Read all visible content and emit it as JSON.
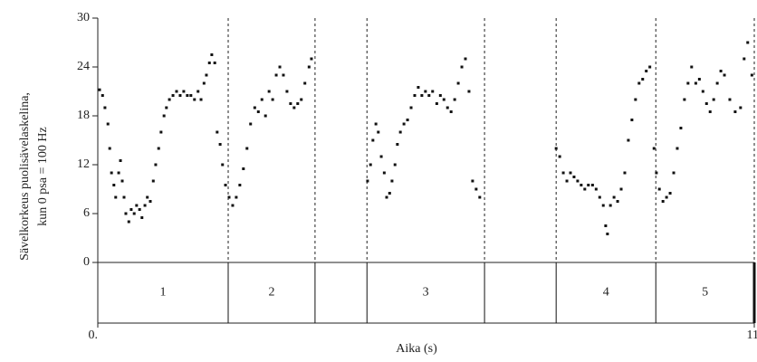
{
  "chart_data": {
    "type": "scatter",
    "x_label": "Aika (s)",
    "y_label": [
      "Sävelkorkeus puolisävelaskelina,",
      "kun 0 psa = 100 Hz"
    ],
    "xlim": [
      0,
      11
    ],
    "xticks": [
      {
        "value": 0,
        "label": "0."
      },
      {
        "value": 11,
        "label": "11."
      }
    ],
    "ylim": [
      0,
      30
    ],
    "yticks": [
      0,
      6,
      12,
      18,
      24,
      30
    ],
    "color": "#111111",
    "segments": [
      {
        "label": "1",
        "start": 0,
        "end": 2.185
      },
      {
        "label": "2",
        "start": 2.185,
        "end": 3.64
      },
      {
        "label": null,
        "start": 3.64,
        "end": 4.51
      },
      {
        "label": "3",
        "start": 4.51,
        "end": 6.48
      },
      {
        "label": null,
        "start": 6.48,
        "end": 7.68
      },
      {
        "label": "4",
        "start": 7.68,
        "end": 9.35
      },
      {
        "label": "5",
        "start": 9.35,
        "end": 11
      }
    ],
    "x": [
      0.03,
      0.08,
      0.12,
      0.17,
      0.2,
      0.23,
      0.27,
      0.3,
      0.35,
      0.38,
      0.41,
      0.44,
      0.47,
      0.52,
      0.56,
      0.61,
      0.65,
      0.7,
      0.74,
      0.79,
      0.83,
      0.88,
      0.93,
      0.97,
      1.02,
      1.06,
      1.11,
      1.15,
      1.2,
      1.26,
      1.32,
      1.38,
      1.44,
      1.5,
      1.56,
      1.62,
      1.68,
      1.73,
      1.78,
      1.82,
      1.87,
      1.91,
      1.96,
      2.0,
      2.05,
      2.09,
      2.14,
      2.2,
      2.26,
      2.32,
      2.38,
      2.44,
      2.5,
      2.56,
      2.63,
      2.69,
      2.75,
      2.81,
      2.87,
      2.93,
      2.99,
      3.05,
      3.11,
      3.17,
      3.23,
      3.29,
      3.35,
      3.41,
      3.47,
      3.54,
      3.58,
      4.52,
      4.57,
      4.61,
      4.66,
      4.7,
      4.75,
      4.8,
      4.84,
      4.89,
      4.93,
      4.98,
      5.02,
      5.07,
      5.13,
      5.19,
      5.25,
      5.31,
      5.37,
      5.43,
      5.49,
      5.55,
      5.61,
      5.68,
      5.74,
      5.8,
      5.86,
      5.92,
      5.98,
      6.04,
      6.1,
      6.16,
      6.22,
      6.28,
      6.34,
      6.4,
      7.68,
      7.74,
      7.8,
      7.86,
      7.92,
      7.98,
      8.04,
      8.1,
      8.16,
      8.22,
      8.29,
      8.35,
      8.41,
      8.47,
      8.51,
      8.54,
      8.59,
      8.65,
      8.71,
      8.77,
      8.83,
      8.89,
      8.95,
      9.01,
      9.07,
      9.13,
      9.19,
      9.25,
      9.32,
      9.36,
      9.41,
      9.47,
      9.53,
      9.59,
      9.65,
      9.71,
      9.77,
      9.83,
      9.89,
      9.95,
      10.02,
      10.08,
      10.14,
      10.2,
      10.26,
      10.32,
      10.38,
      10.44,
      10.5,
      10.59,
      10.68,
      10.77,
      10.83,
      10.89,
      10.96
    ],
    "y": [
      21.2,
      20.5,
      19,
      17,
      14,
      11,
      9.5,
      8,
      11,
      12.5,
      10,
      8,
      6,
      5,
      6.5,
      6,
      7,
      6.5,
      5.5,
      7,
      8,
      7.5,
      10,
      12,
      14,
      16,
      18,
      19,
      20,
      20.5,
      21,
      20.5,
      21,
      20.5,
      20.5,
      20,
      21,
      20,
      22,
      23,
      24.5,
      25.5,
      24.5,
      16,
      14.5,
      12,
      9.5,
      8,
      7,
      8,
      9.5,
      11.5,
      14,
      17,
      19,
      18.5,
      20,
      18,
      21,
      20,
      23,
      24,
      23,
      21,
      19.5,
      19,
      19.5,
      20,
      22,
      24,
      25,
      10,
      12,
      15,
      17,
      16,
      13,
      11,
      8,
      8.5,
      10,
      12,
      14.5,
      16,
      17,
      17.5,
      19,
      20.5,
      21.5,
      20.5,
      21,
      20.5,
      21,
      19.5,
      20.5,
      20,
      19,
      18.5,
      20,
      22,
      24,
      25,
      21,
      10,
      9,
      8,
      14,
      13,
      11,
      10,
      11,
      10.5,
      10,
      9.5,
      9,
      9.5,
      9.5,
      9,
      8,
      7,
      4.5,
      3.5,
      7,
      8,
      7.5,
      9,
      11,
      15,
      17.5,
      20,
      22,
      22.5,
      23.5,
      24,
      14,
      11,
      9,
      7.5,
      8,
      8.5,
      11,
      14,
      16.5,
      20,
      22,
      24,
      22,
      22.5,
      21,
      19.5,
      18.5,
      20,
      22,
      23.5,
      23,
      20,
      18.5,
      19,
      25,
      27,
      23
    ]
  }
}
